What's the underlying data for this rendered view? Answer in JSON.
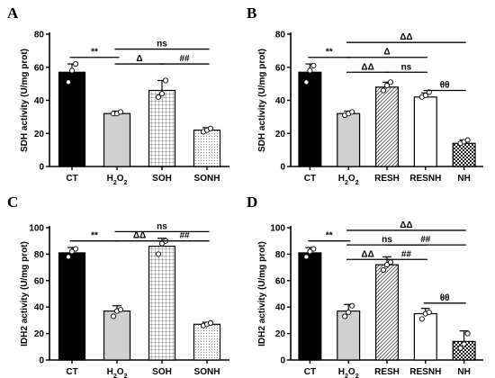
{
  "chart_data": [
    {
      "panel": "A",
      "type": "bar",
      "ylabel": "SDH activity (U/mg prot)",
      "ylim": [
        0,
        80
      ],
      "yticks": [
        0,
        20,
        40,
        60,
        80
      ],
      "categories": [
        "CT",
        "H2O2",
        "SOH",
        "SONH"
      ],
      "values": [
        57,
        32,
        46,
        22
      ],
      "errors": [
        5,
        1.5,
        6,
        1.5
      ],
      "points": [
        [
          51,
          58,
          62
        ],
        [
          32,
          32,
          33
        ],
        [
          42,
          44,
          52
        ],
        [
          21,
          22,
          23
        ]
      ],
      "fills": [
        "black",
        "lightgray",
        "grid",
        "dots"
      ],
      "annotations": [
        {
          "text": "**",
          "from": 0,
          "to": 1,
          "y": 66
        },
        {
          "text": "ns",
          "from": 1,
          "to": 3,
          "y": 71
        },
        {
          "text": "Δ",
          "from": 1,
          "to": 2,
          "y": 62
        },
        {
          "text": "##",
          "from": 2,
          "to": 3,
          "y": 62
        }
      ]
    },
    {
      "panel": "B",
      "type": "bar",
      "ylabel": "SDH activity (U/mg prot)",
      "ylim": [
        0,
        80
      ],
      "yticks": [
        0,
        20,
        40,
        60,
        80
      ],
      "categories": [
        "CT",
        "H2O2",
        "RESH",
        "RESNH",
        "NH"
      ],
      "values": [
        57,
        32,
        48,
        42,
        14
      ],
      "errors": [
        5,
        1.5,
        3,
        2.5,
        2
      ],
      "points": [
        [
          51,
          58,
          61
        ],
        [
          31,
          32,
          33
        ],
        [
          46,
          49,
          51
        ],
        [
          42,
          43,
          45
        ],
        [
          14,
          15,
          16
        ]
      ],
      "fills": [
        "black",
        "lightgray",
        "diagonal",
        "white",
        "checker"
      ],
      "annotations": [
        {
          "text": "**",
          "from": 0,
          "to": 1,
          "y": 66
        },
        {
          "text": "ΔΔ",
          "from": 1,
          "to": 4,
          "y": 75
        },
        {
          "text": "Δ",
          "from": 1,
          "to": 3,
          "y": 66
        },
        {
          "text": "ΔΔ",
          "from": 1,
          "to": 2,
          "y": 57
        },
        {
          "text": "ns",
          "from": 2,
          "to": 3,
          "y": 57
        },
        {
          "text": "θθ",
          "from": 3,
          "to": 4,
          "y": 46
        }
      ]
    },
    {
      "panel": "C",
      "type": "bar",
      "ylabel": "IDH2 activity (U/mg prot)",
      "ylim": [
        0,
        100
      ],
      "yticks": [
        0,
        20,
        40,
        60,
        80,
        100
      ],
      "categories": [
        "CT",
        "H2O2",
        "SOH",
        "SONH"
      ],
      "values": [
        81,
        37,
        86,
        27
      ],
      "errors": [
        4,
        4,
        6,
        1.5
      ],
      "points": [
        [
          78,
          82,
          84
        ],
        [
          33,
          37,
          38
        ],
        [
          80,
          88,
          90
        ],
        [
          26,
          27,
          28
        ]
      ],
      "fills": [
        "black",
        "lightgray",
        "grid",
        "dots"
      ],
      "annotations": [
        {
          "text": "**",
          "from": 0,
          "to": 1,
          "y": 90
        },
        {
          "text": "ns",
          "from": 1,
          "to": 3,
          "y": 97
        },
        {
          "text": "ΔΔ",
          "from": 1,
          "to": 2,
          "y": 90
        },
        {
          "text": "##",
          "from": 2,
          "to": 3,
          "y": 90
        }
      ]
    },
    {
      "panel": "D",
      "type": "bar",
      "ylabel": "IDH2 activity (U/mg prot)",
      "ylim": [
        0,
        100
      ],
      "yticks": [
        0,
        20,
        40,
        60,
        80,
        100
      ],
      "categories": [
        "CT",
        "H2O2",
        "RESH",
        "RESNH",
        "NH"
      ],
      "values": [
        81,
        37,
        72,
        35,
        14
      ],
      "errors": [
        4,
        5,
        6,
        4,
        8
      ],
      "points": [
        [
          78,
          82,
          84
        ],
        [
          33,
          36,
          41
        ],
        [
          68,
          72,
          74
        ],
        [
          31,
          35,
          36
        ],
        [
          9,
          12,
          20
        ]
      ],
      "fills": [
        "black",
        "lightgray",
        "diagonal",
        "white",
        "checker"
      ],
      "annotations": [
        {
          "text": "**",
          "from": 0,
          "to": 1,
          "y": 90
        },
        {
          "text": "ΔΔ",
          "from": 1,
          "to": 4,
          "y": 98
        },
        {
          "text": "ns",
          "from": 1,
          "to": 3,
          "y": 87
        },
        {
          "text": "ΔΔ",
          "from": 1,
          "to": 2,
          "y": 76
        },
        {
          "text": "##",
          "from": 2,
          "to": 3,
          "y": 76
        },
        {
          "text": "##",
          "from": 2,
          "to": 4,
          "y": 87
        },
        {
          "text": "θθ",
          "from": 3,
          "to": 4,
          "y": 43
        }
      ]
    }
  ]
}
